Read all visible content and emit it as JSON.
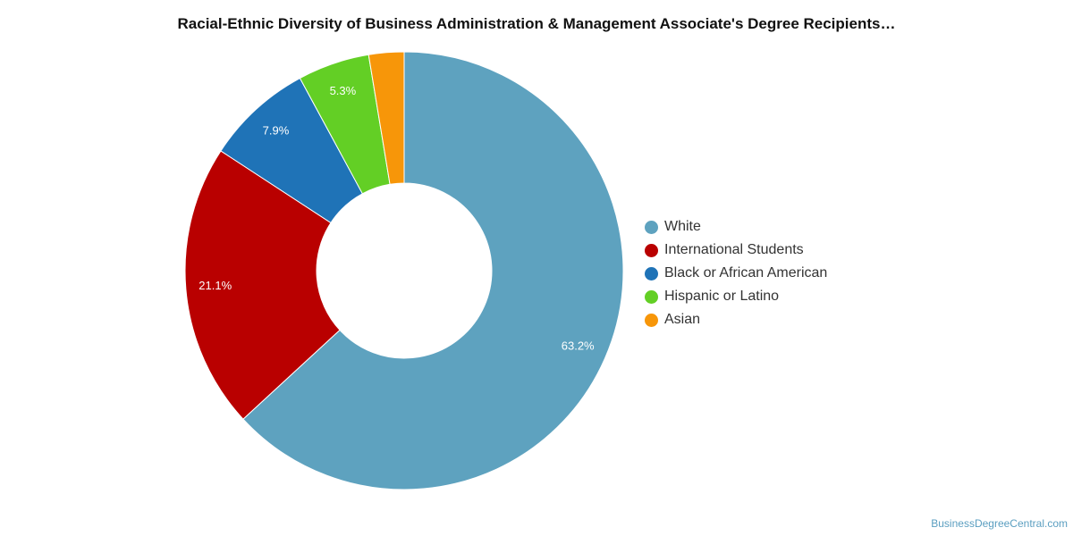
{
  "chart_data": {
    "type": "pie",
    "title": "Racial-Ethnic Diversity of Business Administration & Management Associate's Degree Recipients…",
    "categories": [
      "White",
      "International Students",
      "Black or African American",
      "Hispanic or Latino",
      "Asian"
    ],
    "values": [
      63.2,
      21.1,
      7.9,
      5.3,
      2.6
    ],
    "data_labels": [
      "63.2%",
      "21.1%",
      "7.9%",
      "5.3%",
      ""
    ],
    "colors": [
      "#5ea2bf",
      "#b90000",
      "#1f73b7",
      "#63cf25",
      "#f79609"
    ],
    "donut": true,
    "legend_position": "right"
  },
  "source": "BusinessDegreeCentral.com"
}
